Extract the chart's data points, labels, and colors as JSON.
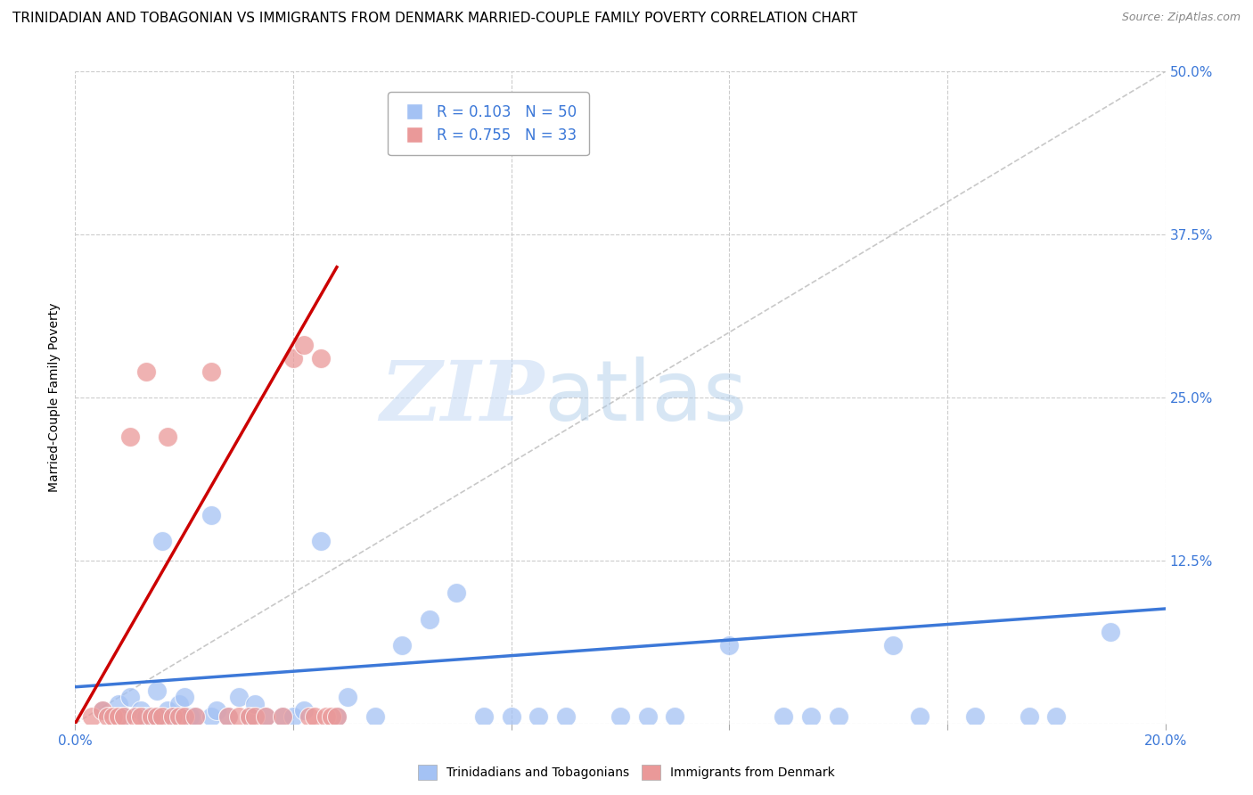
{
  "title": "TRINIDADIAN AND TOBAGONIAN VS IMMIGRANTS FROM DENMARK MARRIED-COUPLE FAMILY POVERTY CORRELATION CHART",
  "source": "Source: ZipAtlas.com",
  "ylabel": "Married-Couple Family Poverty",
  "xlim": [
    0.0,
    0.2
  ],
  "ylim": [
    0.0,
    0.5
  ],
  "xticks": [
    0.0,
    0.04,
    0.08,
    0.12,
    0.16,
    0.2
  ],
  "xticklabels": [
    "0.0%",
    "",
    "",
    "",
    "",
    "20.0%"
  ],
  "yticks": [
    0.0,
    0.125,
    0.25,
    0.375,
    0.5
  ],
  "yticklabels_right": [
    "",
    "12.5%",
    "25.0%",
    "37.5%",
    "50.0%"
  ],
  "blue_R": 0.103,
  "blue_N": 50,
  "pink_R": 0.755,
  "pink_N": 33,
  "blue_color": "#a4c2f4",
  "pink_color": "#ea9999",
  "blue_line_color": "#3c78d8",
  "pink_line_color": "#cc0000",
  "blue_line_x": [
    0.0,
    0.2
  ],
  "blue_line_y": [
    0.028,
    0.088
  ],
  "pink_line_x": [
    0.0,
    0.048
  ],
  "pink_line_y": [
    0.0,
    0.35
  ],
  "diag_line_x": [
    0.0,
    0.2
  ],
  "diag_line_y": [
    0.0,
    0.5
  ],
  "blue_scatter_x": [
    0.005,
    0.008,
    0.009,
    0.01,
    0.012,
    0.013,
    0.015,
    0.015,
    0.016,
    0.017,
    0.018,
    0.019,
    0.02,
    0.021,
    0.022,
    0.025,
    0.025,
    0.026,
    0.028,
    0.03,
    0.032,
    0.033,
    0.035,
    0.038,
    0.04,
    0.042,
    0.045,
    0.048,
    0.05,
    0.055,
    0.06,
    0.065,
    0.07,
    0.075,
    0.08,
    0.085,
    0.09,
    0.1,
    0.105,
    0.11,
    0.12,
    0.13,
    0.135,
    0.14,
    0.15,
    0.155,
    0.165,
    0.175,
    0.18,
    0.19
  ],
  "blue_scatter_y": [
    0.01,
    0.015,
    0.005,
    0.02,
    0.01,
    0.005,
    0.025,
    0.005,
    0.14,
    0.01,
    0.005,
    0.015,
    0.02,
    0.005,
    0.005,
    0.16,
    0.005,
    0.01,
    0.005,
    0.02,
    0.005,
    0.015,
    0.005,
    0.005,
    0.005,
    0.01,
    0.14,
    0.005,
    0.02,
    0.005,
    0.06,
    0.08,
    0.1,
    0.005,
    0.005,
    0.005,
    0.005,
    0.005,
    0.005,
    0.005,
    0.06,
    0.005,
    0.005,
    0.005,
    0.06,
    0.005,
    0.005,
    0.005,
    0.005,
    0.07
  ],
  "pink_scatter_x": [
    0.003,
    0.005,
    0.006,
    0.007,
    0.008,
    0.009,
    0.01,
    0.011,
    0.012,
    0.013,
    0.014,
    0.015,
    0.016,
    0.017,
    0.018,
    0.019,
    0.02,
    0.022,
    0.025,
    0.028,
    0.03,
    0.032,
    0.033,
    0.035,
    0.038,
    0.04,
    0.042,
    0.043,
    0.044,
    0.045,
    0.046,
    0.047,
    0.048
  ],
  "pink_scatter_y": [
    0.005,
    0.01,
    0.005,
    0.005,
    0.005,
    0.005,
    0.22,
    0.005,
    0.005,
    0.27,
    0.005,
    0.005,
    0.005,
    0.22,
    0.005,
    0.005,
    0.005,
    0.005,
    0.27,
    0.005,
    0.005,
    0.005,
    0.005,
    0.005,
    0.005,
    0.28,
    0.29,
    0.005,
    0.005,
    0.28,
    0.005,
    0.005,
    0.005
  ],
  "watermark_zip": "ZIP",
  "watermark_atlas": "atlas",
  "grid_color": "#cccccc",
  "bg_color": "#ffffff",
  "title_fontsize": 11,
  "axis_label_fontsize": 10,
  "tick_fontsize": 11,
  "legend_fontsize": 12
}
